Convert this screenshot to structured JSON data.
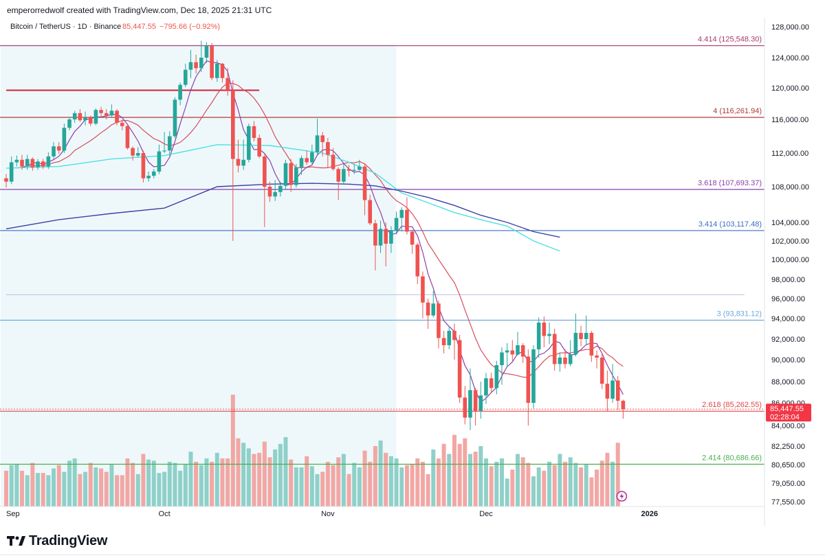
{
  "caption": "emperorredwolf created with TradingView.com, Dec 18, 2025 21:31 UTC",
  "header": {
    "symbol": "Bitcoin / TetherUS · 1D · Binance",
    "price": "85,447.55",
    "change": "−795.66 (−0.92%)"
  },
  "brand": "TradingView",
  "colors": {
    "up": "#26a69a",
    "down": "#ef5350",
    "up_vol": "#8fd0c8",
    "down_vol": "#f2a7a4",
    "shade": "#eef8fb",
    "ma_fast": "#8e3ea8",
    "ma_mid": "#d94c5a",
    "ma_cyan": "#4fe0e0",
    "ma_navy": "#3b3fa3"
  },
  "chart_data": {
    "type": "candlestick",
    "title": "Bitcoin / TetherUS · 1D · Binance",
    "ylim": [
      76800,
      129500
    ],
    "x_ticks": [
      {
        "label": "Sep",
        "x": 0
      },
      {
        "label": "Oct",
        "x": 30
      },
      {
        "label": "Nov",
        "x": 61
      },
      {
        "label": "Dec",
        "x": 91
      },
      {
        "label": "2026",
        "x": 122
      }
    ],
    "y_ticks": [
      "128,000.00",
      "124,000.00",
      "120,000.00",
      "116,000.00",
      "112,000.00",
      "108,000.00",
      "104,000.00",
      "102,000.00",
      "100,000.00",
      "98,000.00",
      "96,000.00",
      "94,000.00",
      "92,000.00",
      "90,000.00",
      "88,000.00",
      "86,000.00",
      "84,000.00",
      "82,250.00",
      "80,650.00",
      "79,050.00",
      "77,550.00"
    ],
    "y_tick_values": [
      128000,
      124000,
      120000,
      116000,
      112000,
      108000,
      104000,
      102000,
      100000,
      98000,
      96000,
      94000,
      92000,
      90000,
      88000,
      86000,
      84000,
      82250,
      80650,
      79050,
      77550
    ],
    "levels": [
      {
        "label": "4.414 (125,548.30)",
        "value": 125548.3,
        "color": "#a83a6b"
      },
      {
        "label": "4 (116,261.94)",
        "value": 116261.94,
        "color": "#b03a3a"
      },
      {
        "label": "3.618 (107,693.37)",
        "value": 107693.37,
        "color": "#8a3fa8"
      },
      {
        "label": "3.414 (103,117.48)",
        "value": 103117.48,
        "color": "#3b6cc4"
      },
      {
        "label": "3 (93,831.12)",
        "value": 93831.12,
        "color": "#6fa8d8"
      },
      {
        "label": "2.618 (85,262.55)",
        "value": 85262.55,
        "color": "#e0434a"
      },
      {
        "label": "2.414 (80,686.66)",
        "value": 80686.66,
        "color": "#4caf50"
      }
    ],
    "extra_lines": [
      {
        "value": 119700,
        "color": "#d0213a",
        "x_from": 0,
        "x_to": 48
      },
      {
        "value": 96400,
        "color": "#b7c3d9",
        "x_from": 0,
        "x_to": 140
      }
    ],
    "price_label": {
      "value": 85447.55,
      "price": "85,447.55",
      "countdown": "02:28:04"
    },
    "shade_range": [
      0,
      74
    ],
    "ma_cyan": [
      [
        0,
        110200
      ],
      [
        10,
        110400
      ],
      [
        20,
        111300
      ],
      [
        30,
        111700
      ],
      [
        40,
        113000
      ],
      [
        50,
        112900
      ],
      [
        60,
        112000
      ],
      [
        65,
        110900
      ],
      [
        70,
        109600
      ],
      [
        75,
        107300
      ],
      [
        80,
        106200
      ],
      [
        85,
        105100
      ],
      [
        90,
        104300
      ],
      [
        95,
        103600
      ],
      [
        100,
        102000
      ],
      [
        105,
        100900
      ]
    ],
    "ma_navy": [
      [
        0,
        103300
      ],
      [
        10,
        104300
      ],
      [
        20,
        105000
      ],
      [
        30,
        105600
      ],
      [
        40,
        108000
      ],
      [
        50,
        108300
      ],
      [
        58,
        108400
      ],
      [
        65,
        108300
      ],
      [
        70,
        108100
      ],
      [
        75,
        107500
      ],
      [
        80,
        106800
      ],
      [
        85,
        105900
      ],
      [
        90,
        104800
      ],
      [
        95,
        104000
      ],
      [
        100,
        103000
      ],
      [
        105,
        102400
      ]
    ],
    "candles": [
      [
        109000,
        108600,
        109500,
        107900
      ],
      [
        108600,
        110900,
        111600,
        108300
      ],
      [
        110900,
        111200,
        111700,
        110400
      ],
      [
        111200,
        110400,
        111800,
        110000
      ],
      [
        110400,
        111300,
        111800,
        110000
      ],
      [
        111300,
        110300,
        111500,
        109900
      ],
      [
        110300,
        111000,
        111300,
        110000
      ],
      [
        111000,
        110400,
        111300,
        110100
      ],
      [
        110400,
        111600,
        112100,
        110100
      ],
      [
        111600,
        112800,
        113300,
        111300
      ],
      [
        112800,
        112300,
        113300,
        111900
      ],
      [
        112300,
        115000,
        115500,
        112000
      ],
      [
        115000,
        116000,
        116300,
        114700
      ],
      [
        116000,
        116800,
        117100,
        115600
      ],
      [
        116800,
        115900,
        117300,
        115700
      ],
      [
        115900,
        116200,
        117000,
        115300
      ],
      [
        116200,
        115500,
        116500,
        115200
      ],
      [
        115500,
        117200,
        117400,
        115300
      ],
      [
        117200,
        116800,
        117600,
        116400
      ],
      [
        116800,
        116500,
        117300,
        116000
      ],
      [
        116500,
        117100,
        117900,
        116200
      ],
      [
        117100,
        115600,
        117300,
        115300
      ],
      [
        115600,
        115200,
        116000,
        114700
      ],
      [
        115200,
        112600,
        115500,
        112400
      ],
      [
        112600,
        111700,
        112800,
        111100
      ],
      [
        111700,
        112000,
        112700,
        111500
      ],
      [
        112000,
        109000,
        112300,
        108500
      ],
      [
        109000,
        109300,
        109800,
        108600
      ],
      [
        109300,
        109800,
        110100,
        109000
      ],
      [
        109800,
        112200,
        113000,
        109500
      ],
      [
        112200,
        112300,
        114500,
        112000
      ],
      [
        112300,
        114000,
        114600,
        111700
      ],
      [
        114000,
        118500,
        118800,
        113800
      ],
      [
        118500,
        120400,
        120700,
        117800
      ],
      [
        120400,
        122400,
        123200,
        120100
      ],
      [
        122400,
        123400,
        125000,
        121300
      ],
      [
        123400,
        122600,
        124400,
        121900
      ],
      [
        122600,
        124000,
        126200,
        122100
      ],
      [
        124000,
        125500,
        126000,
        123300
      ],
      [
        125500,
        121300,
        125900,
        121000
      ],
      [
        121300,
        123200,
        123700,
        120800
      ],
      [
        123200,
        121300,
        123300,
        120700
      ],
      [
        121300,
        119700,
        122600,
        119000
      ],
      [
        119700,
        111300,
        121000,
        102000
      ],
      [
        111300,
        110500,
        113600,
        109700
      ],
      [
        110500,
        111200,
        113600,
        110000
      ],
      [
        111200,
        115200,
        115500,
        110900
      ],
      [
        115200,
        113800,
        115800,
        113400
      ],
      [
        113800,
        111600,
        114200,
        111400
      ],
      [
        111600,
        108000,
        112000,
        103500
      ],
      [
        108000,
        106900,
        108600,
        106300
      ],
      [
        106900,
        107400,
        108800,
        106400
      ],
      [
        107400,
        108100,
        108600,
        106900
      ],
      [
        108100,
        110800,
        111200,
        107700
      ],
      [
        110800,
        108200,
        111300,
        107400
      ],
      [
        108200,
        110300,
        110700,
        107900
      ],
      [
        110300,
        111400,
        111700,
        109400
      ],
      [
        111400,
        110900,
        112300,
        110600
      ],
      [
        110900,
        112100,
        113000,
        110700
      ],
      [
        112100,
        114100,
        116100,
        111800
      ],
      [
        114100,
        113300,
        114500,
        111600
      ],
      [
        113300,
        111800,
        113800,
        110200
      ],
      [
        111800,
        110100,
        112600,
        109900
      ],
      [
        110100,
        108600,
        110300,
        106500
      ],
      [
        108600,
        110100,
        110700,
        108300
      ],
      [
        110100,
        109900,
        110600,
        109200
      ],
      [
        109900,
        110000,
        110700,
        109500
      ],
      [
        110000,
        110400,
        111200,
        109900
      ],
      [
        110400,
        106500,
        110700,
        104800
      ],
      [
        106500,
        103900,
        107100,
        103700
      ],
      [
        103900,
        101500,
        104300,
        98900
      ],
      [
        101500,
        103300,
        104200,
        100700
      ],
      [
        103300,
        101700,
        104000,
        99300
      ],
      [
        101700,
        103100,
        103600,
        100700
      ],
      [
        103100,
        104500,
        105200,
        102700
      ],
      [
        104500,
        105400,
        105700,
        103000
      ],
      [
        105400,
        103000,
        106800,
        102700
      ],
      [
        103000,
        101600,
        103200,
        100600
      ],
      [
        101600,
        98300,
        101800,
        97500
      ],
      [
        98300,
        95600,
        98800,
        94000
      ],
      [
        95600,
        94300,
        96000,
        93000
      ],
      [
        94300,
        95500,
        96800,
        94100
      ],
      [
        95500,
        92100,
        95800,
        91100
      ],
      [
        92100,
        91400,
        92800,
        90600
      ],
      [
        91400,
        92800,
        93200,
        91000
      ],
      [
        92800,
        91900,
        93500,
        90000
      ],
      [
        91900,
        86500,
        92400,
        86000
      ],
      [
        86500,
        84700,
        87600,
        84100
      ],
      [
        84700,
        87200,
        89200,
        83600
      ],
      [
        87200,
        85300,
        87400,
        84000
      ],
      [
        85300,
        86700,
        88000,
        84600
      ],
      [
        86700,
        88300,
        88800,
        85900
      ],
      [
        88300,
        87400,
        88800,
        86900
      ],
      [
        87400,
        89500,
        89900,
        86800
      ],
      [
        89500,
        90700,
        91200,
        87700
      ],
      [
        90700,
        90900,
        91600,
        89300
      ],
      [
        90900,
        90500,
        91900,
        89900
      ],
      [
        90500,
        91400,
        92700,
        90400
      ],
      [
        91400,
        90300,
        91600,
        89700
      ],
      [
        90300,
        86000,
        91000,
        84000
      ],
      [
        86000,
        91000,
        91400,
        85500
      ],
      [
        91000,
        93600,
        94100,
        90200
      ],
      [
        93600,
        92300,
        94200,
        91200
      ],
      [
        92300,
        92500,
        93600,
        91500
      ],
      [
        92500,
        89600,
        93000,
        89000
      ],
      [
        89600,
        90200,
        90700,
        88900
      ],
      [
        90200,
        89600,
        91000,
        89200
      ],
      [
        89600,
        90500,
        91900,
        89400
      ],
      [
        90500,
        92600,
        94500,
        90300
      ],
      [
        92600,
        92000,
        93300,
        91300
      ],
      [
        92000,
        92600,
        94300,
        91500
      ],
      [
        92600,
        90400,
        92800,
        89800
      ],
      [
        90400,
        90200,
        90900,
        89200
      ],
      [
        90200,
        87800,
        90600,
        87300
      ],
      [
        87800,
        86400,
        89000,
        85300
      ],
      [
        86400,
        88100,
        89600,
        86000
      ],
      [
        88100,
        86200,
        88500,
        85400
      ],
      [
        86200,
        85447.55,
        86300,
        84600
      ]
    ],
    "volumes": [
      32,
      37,
      38,
      32,
      28,
      39,
      30,
      30,
      28,
      34,
      37,
      31,
      41,
      43,
      29,
      31,
      39,
      35,
      34,
      31,
      38,
      28,
      28,
      43,
      39,
      29,
      47,
      42,
      41,
      30,
      31,
      40,
      39,
      32,
      38,
      49,
      40,
      37,
      43,
      40,
      48,
      43,
      43,
      100,
      61,
      57,
      52,
      47,
      48,
      58,
      44,
      51,
      56,
      62,
      42,
      35,
      35,
      45,
      36,
      29,
      31,
      40,
      37,
      44,
      47,
      29,
      39,
      35,
      50,
      40,
      54,
      59,
      48,
      45,
      43,
      35,
      37,
      38,
      43,
      40,
      29,
      51,
      43,
      56,
      47,
      64,
      56,
      61,
      47,
      49,
      54,
      43,
      36,
      40,
      43,
      25,
      33,
      47,
      44,
      39,
      27,
      35,
      32,
      40,
      37,
      47,
      40,
      44,
      39,
      35,
      38,
      26,
      33,
      41,
      48,
      40,
      57
    ]
  }
}
